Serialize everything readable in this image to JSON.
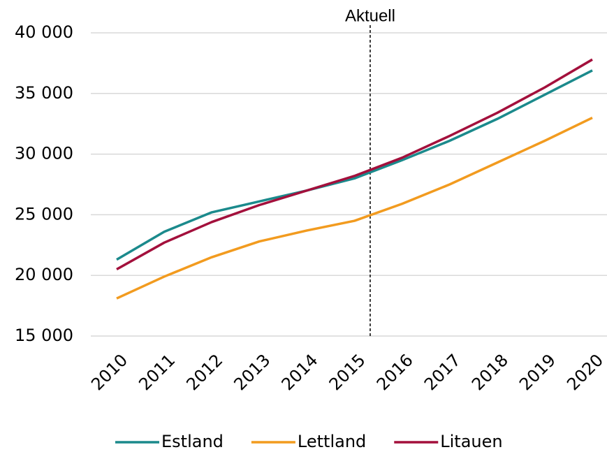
{
  "chart_data": {
    "type": "line",
    "x": [
      2010,
      2011,
      2012,
      2013,
      2014,
      2015,
      2016,
      2017,
      2018,
      2019,
      2020
    ],
    "xlim": [
      2010,
      2020
    ],
    "xticks": [
      2010,
      2011,
      2012,
      2013,
      2014,
      2015,
      2016,
      2017,
      2018,
      2019,
      2020
    ],
    "ylim": [
      15000,
      40000
    ],
    "yticks": [
      {
        "value": 15000,
        "label": "15 000"
      },
      {
        "value": 20000,
        "label": "20 000"
      },
      {
        "value": 25000,
        "label": "25 000"
      },
      {
        "value": 30000,
        "label": "30 000"
      },
      {
        "value": 35000,
        "label": "35 000"
      },
      {
        "value": 40000,
        "label": "40 000"
      }
    ],
    "grid": true,
    "legend": "bottom",
    "series": [
      {
        "name": "Estland",
        "color": "#1b8a8c",
        "values": [
          21300,
          23600,
          25200,
          26100,
          27000,
          28000,
          29500,
          31100,
          32900,
          34900,
          36900
        ]
      },
      {
        "name": "Lettland",
        "color": "#f29b1f",
        "values": [
          18100,
          19900,
          21500,
          22800,
          23700,
          24500,
          25900,
          27500,
          29300,
          31100,
          33000
        ]
      },
      {
        "name": "Litauen",
        "color": "#a3103c",
        "values": [
          20500,
          22700,
          24400,
          25800,
          27000,
          28200,
          29700,
          31500,
          33400,
          35500,
          37800
        ]
      }
    ],
    "annotations": [
      {
        "text": "Aktuell",
        "x": 2015.33
      }
    ]
  }
}
